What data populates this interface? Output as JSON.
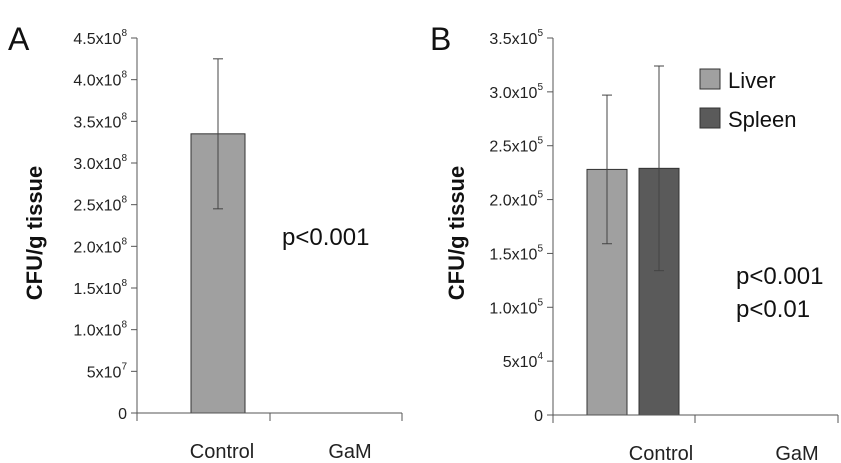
{
  "chart_data": [
    {
      "type": "bar",
      "panel": "A",
      "ylabel": "CFU/g tissue",
      "categories": [
        "Control",
        "GaM"
      ],
      "series": [
        {
          "values": [
            335000000.0,
            0
          ],
          "error": [
            90000000.0,
            0
          ],
          "color": "#a0a0a0"
        }
      ],
      "ylim": [
        0,
        450000000.0
      ],
      "yticks": [
        {
          "value": 0,
          "mantissa": "0",
          "exp": ""
        },
        {
          "value": 50000000.0,
          "mantissa": "5x10",
          "exp": "7"
        },
        {
          "value": 100000000.0,
          "mantissa": "1.0x10",
          "exp": "8"
        },
        {
          "value": 150000000.0,
          "mantissa": "1.5x10",
          "exp": "8"
        },
        {
          "value": 200000000.0,
          "mantissa": "2.0x10",
          "exp": "8"
        },
        {
          "value": 250000000.0,
          "mantissa": "2.5x10",
          "exp": "8"
        },
        {
          "value": 300000000.0,
          "mantissa": "3.0x10",
          "exp": "8"
        },
        {
          "value": 350000000.0,
          "mantissa": "3.5x10",
          "exp": "8"
        },
        {
          "value": 400000000.0,
          "mantissa": "4.0x10",
          "exp": "8"
        },
        {
          "value": 450000000.0,
          "mantissa": "4.5x10",
          "exp": "8"
        }
      ],
      "annotations": [
        "p<0.001"
      ],
      "grid": false,
      "legend": "none"
    },
    {
      "type": "bar",
      "panel": "B",
      "ylabel": "CFU/g tissue",
      "categories": [
        "Control",
        "GaM"
      ],
      "series": [
        {
          "name": "Liver",
          "values": [
            228000.0,
            0
          ],
          "error": [
            69000.0,
            0
          ],
          "color": "#a0a0a0"
        },
        {
          "name": "Spleen",
          "values": [
            229000.0,
            0
          ],
          "error": [
            95000.0,
            0
          ],
          "color": "#5a5a5a"
        }
      ],
      "ylim": [
        0,
        350000.0
      ],
      "yticks": [
        {
          "value": 0,
          "mantissa": "0",
          "exp": ""
        },
        {
          "value": 50000.0,
          "mantissa": "5x10",
          "exp": "4"
        },
        {
          "value": 100000.0,
          "mantissa": "1.0x10",
          "exp": "5"
        },
        {
          "value": 150000.0,
          "mantissa": "1.5x10",
          "exp": "5"
        },
        {
          "value": 200000.0,
          "mantissa": "2.0x10",
          "exp": "5"
        },
        {
          "value": 250000.0,
          "mantissa": "2.5x10",
          "exp": "5"
        },
        {
          "value": 300000.0,
          "mantissa": "3.0x10",
          "exp": "5"
        },
        {
          "value": 350000.0,
          "mantissa": "3.5x10",
          "exp": "5"
        }
      ],
      "annotations": [
        "p<0.001",
        "p<0.01"
      ],
      "grid": false,
      "legend": "top-right"
    }
  ]
}
